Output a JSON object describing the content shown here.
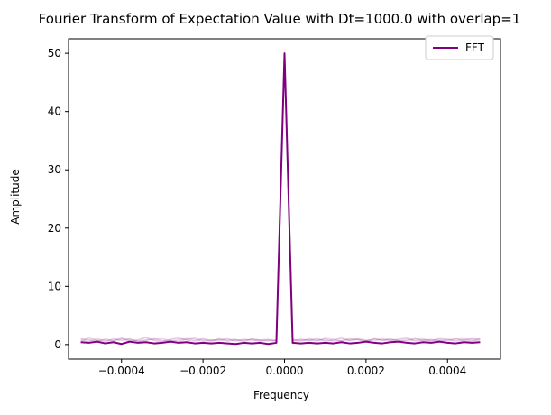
{
  "chart_data": {
    "type": "line",
    "title": "Fourier Transform of Expectation Value with Dt=1000.0 with overlap=1",
    "xlabel": "Frequency",
    "ylabel": "Amplitude",
    "xlim": [
      -0.00053,
      0.00053
    ],
    "ylim": [
      -2.5,
      52.5
    ],
    "grid": false,
    "legend_position": "top-right",
    "x_ticks": [
      {
        "value": -0.0004,
        "label": "−0.0004"
      },
      {
        "value": -0.0002,
        "label": "−0.0002"
      },
      {
        "value": 0.0,
        "label": "0.0000"
      },
      {
        "value": 0.0002,
        "label": "0.0002"
      },
      {
        "value": 0.0004,
        "label": "0.0004"
      }
    ],
    "y_ticks": [
      {
        "value": 0,
        "label": "0"
      },
      {
        "value": 10,
        "label": "10"
      },
      {
        "value": 20,
        "label": "20"
      },
      {
        "value": 30,
        "label": "30"
      },
      {
        "value": 40,
        "label": "40"
      },
      {
        "value": 50,
        "label": "50"
      }
    ],
    "legend_entries": [
      {
        "label": "FFT",
        "color": "#800080"
      }
    ],
    "x": [
      -0.0005,
      -0.00048,
      -0.00046,
      -0.00044,
      -0.00042,
      -0.0004,
      -0.00038,
      -0.00036,
      -0.00034,
      -0.00032,
      -0.0003,
      -0.00028,
      -0.00026,
      -0.00024,
      -0.00022,
      -0.0002,
      -0.00018,
      -0.00016,
      -0.00014,
      -0.00012,
      -0.0001,
      -8e-05,
      -6e-05,
      -4e-05,
      -2e-05,
      0.0,
      2e-05,
      4e-05,
      6e-05,
      8e-05,
      0.0001,
      0.00012,
      0.00014,
      0.00016,
      0.00018,
      0.0002,
      0.00022,
      0.00024,
      0.00026,
      0.00028,
      0.0003,
      0.00032,
      0.00034,
      0.00036,
      0.00038,
      0.0004,
      0.00042,
      0.00044,
      0.00046,
      0.00048
    ],
    "series": [
      {
        "name": "FFT",
        "color": "#800080",
        "opacity": 1.0,
        "values": [
          0.4,
          0.3,
          0.5,
          0.2,
          0.4,
          0.1,
          0.5,
          0.3,
          0.4,
          0.2,
          0.3,
          0.5,
          0.3,
          0.4,
          0.2,
          0.3,
          0.2,
          0.3,
          0.2,
          0.1,
          0.3,
          0.2,
          0.3,
          0.1,
          0.3,
          50.0,
          0.3,
          0.2,
          0.3,
          0.2,
          0.3,
          0.2,
          0.4,
          0.2,
          0.3,
          0.5,
          0.3,
          0.2,
          0.4,
          0.5,
          0.3,
          0.2,
          0.4,
          0.3,
          0.5,
          0.3,
          0.2,
          0.4,
          0.3,
          0.4
        ]
      },
      {
        "color": "#800080",
        "opacity": 0.22,
        "values": [
          1.0,
          0.8,
          0.6,
          0.9,
          0.7,
          1.1,
          0.6,
          0.8,
          1.2,
          0.7,
          0.5,
          0.9,
          1.1,
          0.8,
          0.6,
          1.0,
          0.7,
          0.9,
          0.6,
          0.8,
          0.7,
          0.9,
          0.6,
          0.8,
          0.7,
          50.0,
          0.6,
          0.9,
          0.7,
          1.0,
          0.6,
          0.8,
          1.1,
          0.7,
          0.9,
          0.6,
          1.0,
          0.8,
          0.7,
          0.9,
          1.1,
          0.6,
          0.8,
          0.7,
          1.0,
          0.9,
          0.6,
          0.8,
          1.0,
          0.9
        ]
      },
      {
        "color": "#800080",
        "opacity": 0.18,
        "values": [
          0.6,
          1.1,
          0.8,
          0.5,
          1.0,
          0.7,
          0.9,
          0.6,
          0.8,
          1.0,
          0.7,
          0.6,
          0.8,
          1.0,
          0.9,
          0.6,
          0.8,
          0.7,
          1.0,
          0.6,
          0.9,
          0.7,
          0.8,
          0.6,
          0.7,
          50.0,
          0.8,
          0.6,
          1.0,
          0.7,
          0.9,
          0.6,
          0.7,
          1.0,
          0.8,
          0.6,
          0.9,
          0.7,
          1.0,
          0.6,
          0.8,
          1.0,
          0.7,
          0.9,
          0.6,
          0.8,
          1.0,
          0.7,
          0.6,
          1.0
        ]
      },
      {
        "color": "#800080",
        "opacity": 0.15,
        "values": [
          0.8,
          0.5,
          1.0,
          0.7,
          0.6,
          0.9,
          1.0,
          0.5,
          0.7,
          0.9,
          1.0,
          0.7,
          0.5,
          0.9,
          1.1,
          0.8,
          0.5,
          1.0,
          0.8,
          0.9,
          0.5,
          1.0,
          0.8,
          0.9,
          0.6,
          50.0,
          0.9,
          0.7,
          0.8,
          0.6,
          1.1,
          0.9,
          0.6,
          0.8,
          1.0,
          0.8,
          0.6,
          1.0,
          0.8,
          0.7,
          0.6,
          0.9,
          1.0,
          0.6,
          0.8,
          0.6,
          0.9,
          1.0,
          0.8,
          0.7
        ]
      }
    ]
  }
}
